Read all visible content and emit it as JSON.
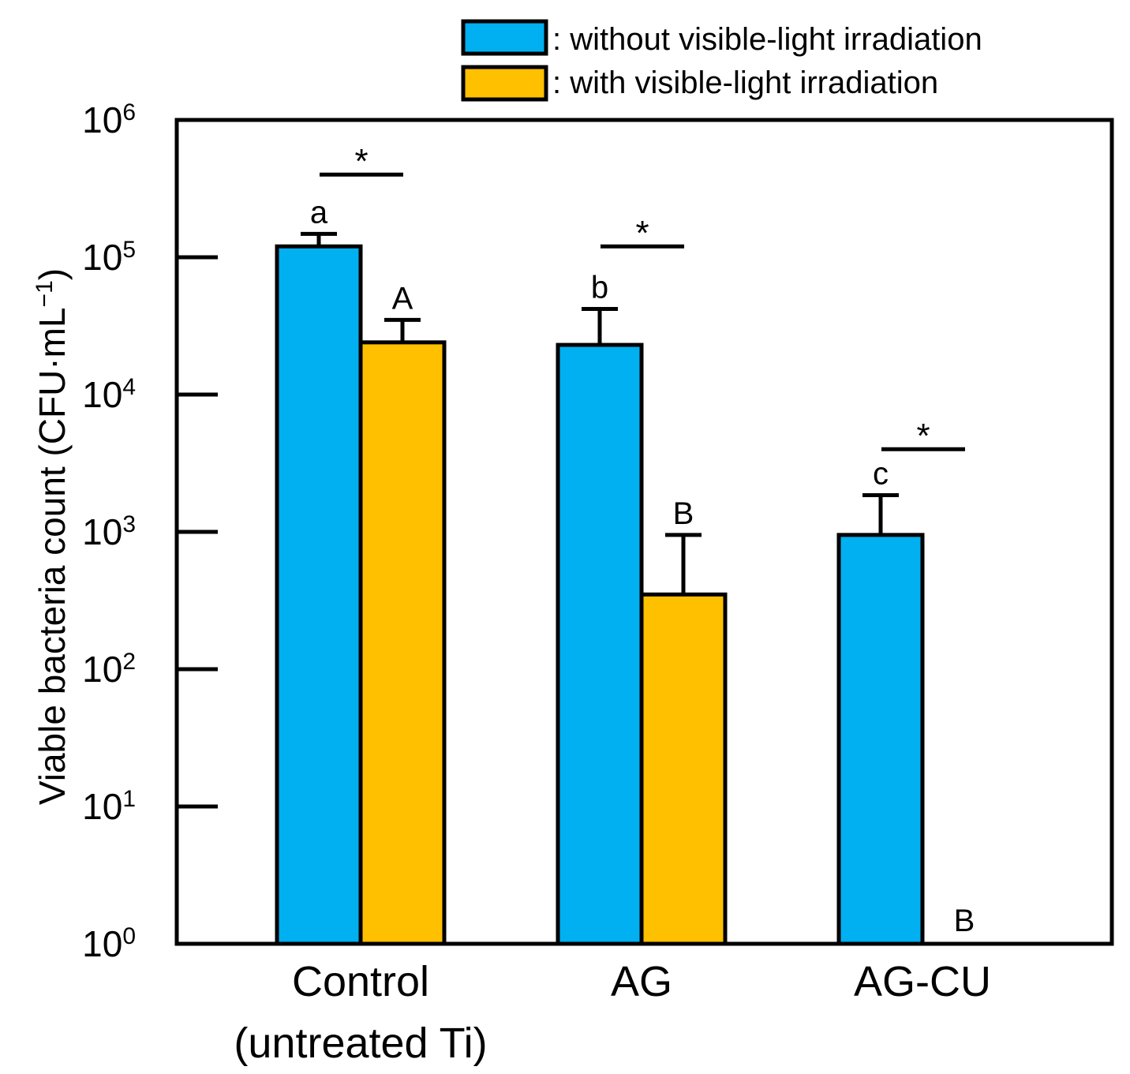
{
  "chart_data": {
    "type": "bar",
    "scale": "log10",
    "ylabel": "Viable bacteria count (CFU·mL",
    "ylabel_sup": "−1",
    "ylabel_close": ")",
    "ylim": [
      1,
      1000000
    ],
    "yticks": [
      {
        "base": "10",
        "exp": "0",
        "value": 1
      },
      {
        "base": "10",
        "exp": "1",
        "value": 10
      },
      {
        "base": "10",
        "exp": "2",
        "value": 100
      },
      {
        "base": "10",
        "exp": "3",
        "value": 1000
      },
      {
        "base": "10",
        "exp": "4",
        "value": 10000
      },
      {
        "base": "10",
        "exp": "5",
        "value": 100000
      },
      {
        "base": "10",
        "exp": "6",
        "value": 1000000
      }
    ],
    "categories": [
      {
        "line1": "Control",
        "line2": "(untreated Ti)"
      },
      {
        "line1": "AG",
        "line2": ""
      },
      {
        "line1": "AG-CU",
        "line2": ""
      }
    ],
    "series": [
      {
        "name": ": without visible-light irradiation",
        "color": "#00b0f0",
        "values": [
          120000,
          23000,
          950
        ],
        "errors": [
          148000,
          42000,
          1850
        ],
        "letters": [
          "a",
          "b",
          "c"
        ]
      },
      {
        "name": ": with visible-light irradiation",
        "color": "#ffc000",
        "values": [
          24000,
          350,
          1
        ],
        "errors": [
          35000,
          950,
          null
        ],
        "letters": [
          "A",
          "B",
          "B"
        ]
      }
    ],
    "significance": [
      {
        "group": 0,
        "label": "*",
        "level": 400000
      },
      {
        "group": 1,
        "label": "*",
        "level": 120000
      },
      {
        "group": 2,
        "label": "*",
        "level": 4000
      }
    ]
  }
}
